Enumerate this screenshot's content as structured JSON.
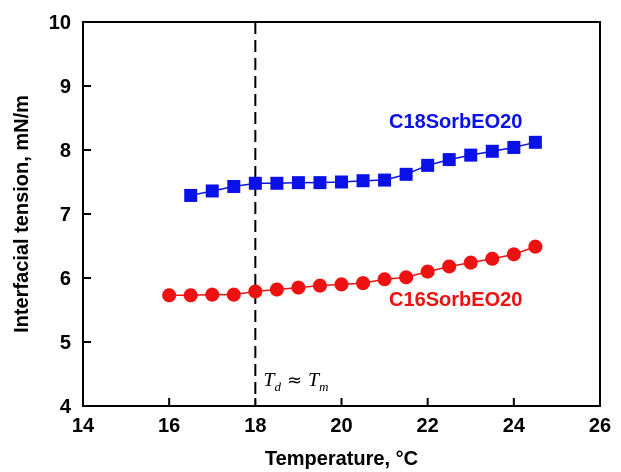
{
  "chart_data": {
    "type": "line",
    "xlabel": "Temperature, °C",
    "ylabel": "Interfacial tension, mN/m",
    "xlim": [
      14,
      26
    ],
    "ylim": [
      4,
      10
    ],
    "xticks": [
      14,
      16,
      18,
      20,
      22,
      24,
      26
    ],
    "yticks": [
      4,
      5,
      6,
      7,
      8,
      9,
      10
    ],
    "grid": false,
    "legend": "none",
    "series": [
      {
        "name": "C18SorbEO20",
        "marker": "square",
        "color": "#0a10e8",
        "x": [
          16.5,
          17.0,
          17.5,
          18.0,
          18.5,
          19.0,
          19.5,
          20.0,
          20.5,
          21.0,
          21.5,
          22.0,
          22.5,
          23.0,
          23.5,
          24.0,
          24.5
        ],
        "y": [
          7.29,
          7.36,
          7.43,
          7.48,
          7.48,
          7.49,
          7.49,
          7.5,
          7.52,
          7.53,
          7.62,
          7.76,
          7.85,
          7.92,
          7.98,
          8.04,
          8.12
        ]
      },
      {
        "name": "C16SorbEO20",
        "marker": "circle",
        "color": "#ee1111",
        "x": [
          16.0,
          16.5,
          17.0,
          17.5,
          18.0,
          18.5,
          19.0,
          19.5,
          20.0,
          20.5,
          21.0,
          21.5,
          22.0,
          22.5,
          23.0,
          23.5,
          24.0,
          24.5
        ],
        "y": [
          5.73,
          5.73,
          5.74,
          5.74,
          5.79,
          5.82,
          5.85,
          5.88,
          5.9,
          5.92,
          5.98,
          6.01,
          6.1,
          6.18,
          6.24,
          6.3,
          6.37,
          6.49
        ]
      }
    ],
    "annotations": {
      "vertical_line_x": 18,
      "vertical_line_style": "dashed",
      "label_main_1": "T",
      "label_sub_1": "d",
      "label_approx": "≈",
      "label_main_2": "T",
      "label_sub_2": "m"
    }
  }
}
